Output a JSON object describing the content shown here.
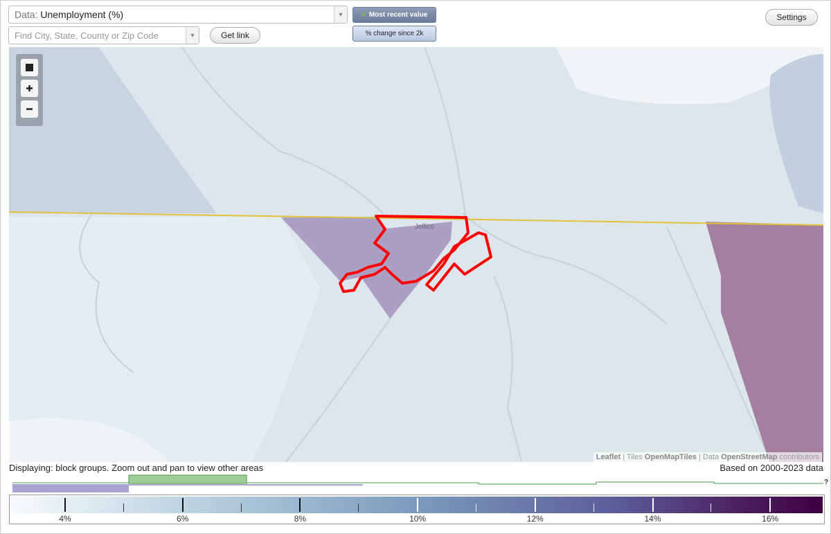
{
  "controls": {
    "data_label": "Data:",
    "data_value": "Unemployment (%)",
    "search_placeholder": "Find City, State, County or Zip Code",
    "get_link": "Get link",
    "most_recent": "Most recent value",
    "change_since": "% change since 2k",
    "settings": "Settings"
  },
  "map": {
    "place_label": "Jellico",
    "attribution": [
      "Leaflet",
      " | Tiles ",
      "OpenMapTiles",
      " | Data ",
      "OpenStreetMap",
      " contributors"
    ]
  },
  "status": {
    "displaying": "Displaying: block groups. Zoom out and pan to view other areas",
    "based_on": "Based on 2000-2023 data"
  },
  "legend": {
    "labels": [
      "4%",
      "6%",
      "8%",
      "10%",
      "12%",
      "14%",
      "16%"
    ],
    "unknown": "?"
  }
}
